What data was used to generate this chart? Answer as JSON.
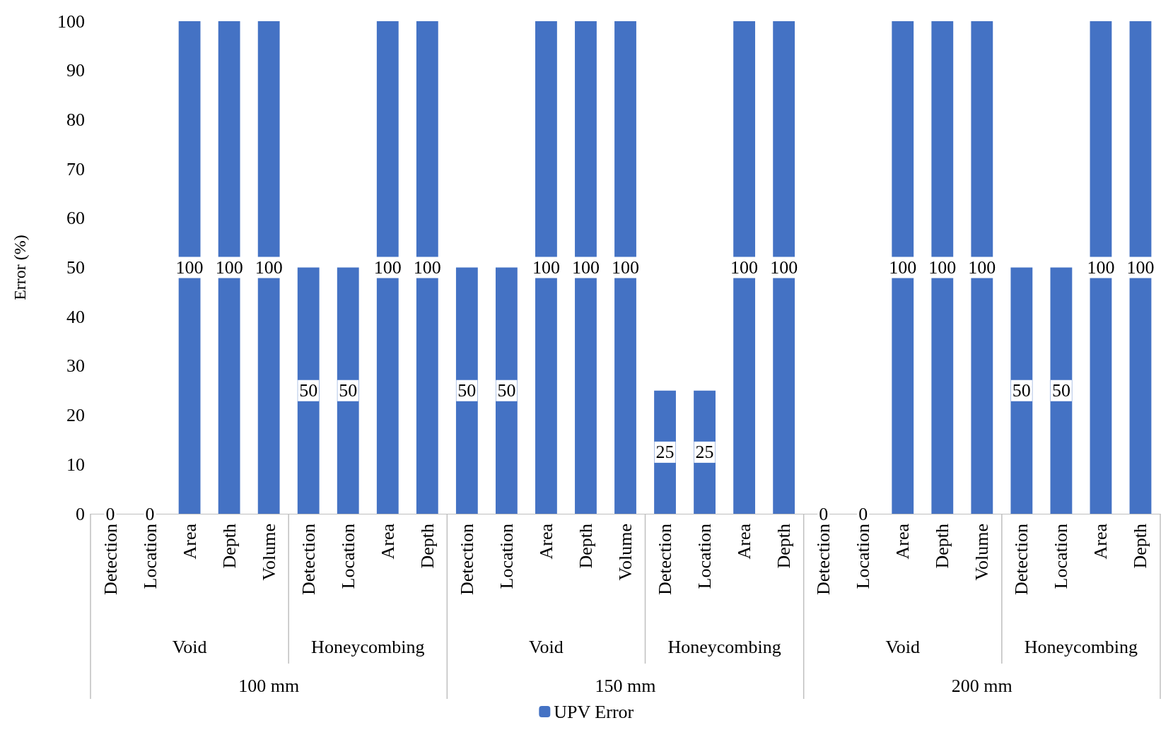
{
  "chart_data": {
    "type": "bar",
    "ylabel": "Error (%)",
    "categories": [
      "Detection",
      "Location",
      "Area",
      "Depth",
      "Volume",
      "Detection",
      "Location",
      "Area",
      "Depth",
      "Detection",
      "Location",
      "Area",
      "Depth",
      "Volume",
      "Detection",
      "Location",
      "Area",
      "Depth",
      "Detection",
      "Location",
      "Area",
      "Depth",
      "Volume",
      "Detection",
      "Location",
      "Area",
      "Depth"
    ],
    "series": [
      {
        "name": "UPV Error",
        "color": "#4472c4",
        "values": [
          0,
          0,
          100,
          100,
          100,
          50,
          50,
          100,
          100,
          50,
          50,
          100,
          100,
          100,
          25,
          25,
          100,
          100,
          0,
          0,
          100,
          100,
          100,
          50,
          50,
          100,
          100
        ]
      }
    ],
    "ylim": [
      0,
      100
    ],
    "yticks": [
      0,
      10,
      20,
      30,
      40,
      50,
      60,
      70,
      80,
      90,
      100
    ],
    "annotations": [
      "Void",
      "Honeycombing",
      "Void",
      "Honeycombing",
      "Void",
      "Honeycombing",
      "100 mm",
      "150 mm",
      "200 mm"
    ],
    "data_labels": true,
    "legend": "bottom",
    "grid": false
  }
}
